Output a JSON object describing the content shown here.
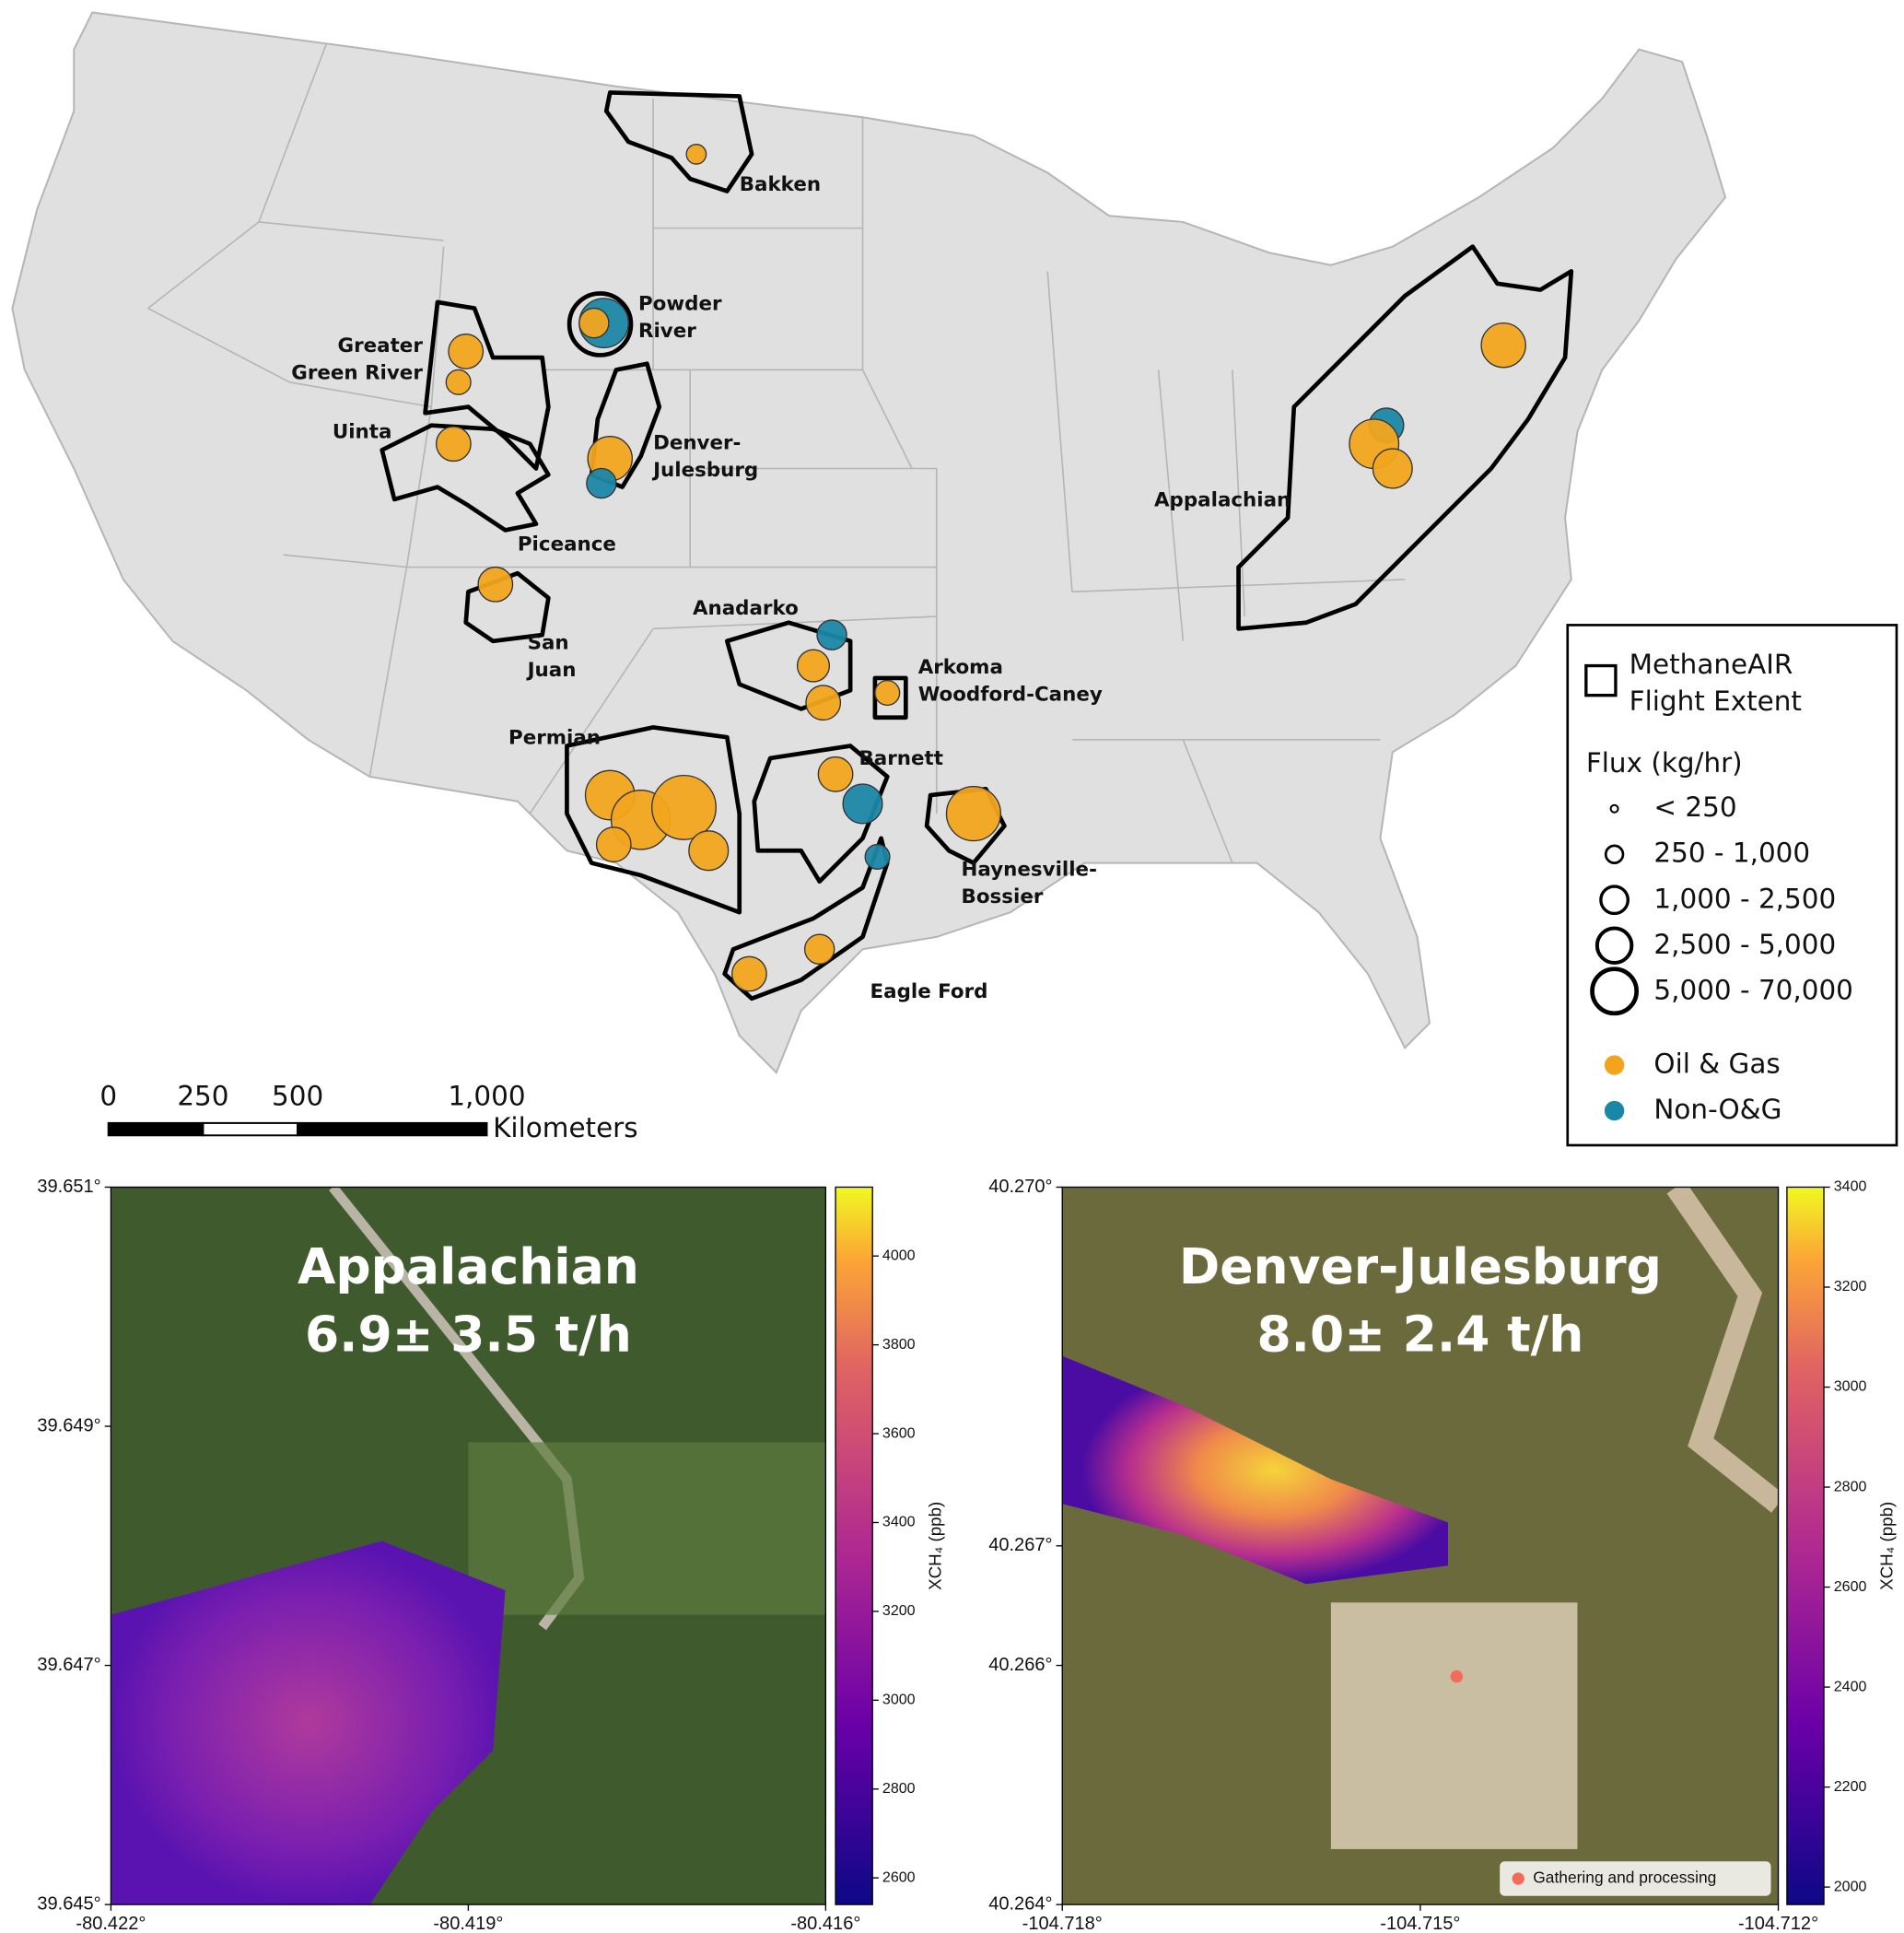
{
  "map": {
    "basins": [
      {
        "label": [
          "Bakken"
        ]
      },
      {
        "label": [
          "Powder",
          "River"
        ]
      },
      {
        "label": [
          "Greater",
          "Green River"
        ]
      },
      {
        "label": [
          "Uinta"
        ]
      },
      {
        "label": [
          "Denver-",
          "Julesburg"
        ]
      },
      {
        "label": [
          "Piceance"
        ]
      },
      {
        "label": [
          "San",
          "Juan"
        ]
      },
      {
        "label": [
          "Anadarko"
        ]
      },
      {
        "label": [
          "Arkoma",
          "Woodford-Caney"
        ]
      },
      {
        "label": [
          "Permian"
        ]
      },
      {
        "label": [
          "Barnett"
        ]
      },
      {
        "label": [
          "Haynesville-",
          "Bossier"
        ]
      },
      {
        "label": [
          "Eagle Ford"
        ]
      },
      {
        "label": [
          "Appalachian"
        ]
      }
    ],
    "legend": {
      "extent_label": [
        "MethaneAIR",
        "Flight Extent"
      ],
      "flux_title": "Flux (kg/hr)",
      "flux_classes": [
        "< 250",
        "250 - 1,000",
        "1,000 - 2,500",
        "2,500 - 5,000",
        "5,000 - 70,000"
      ],
      "categories": [
        {
          "label": "Oil & Gas",
          "color": "#f2a51c"
        },
        {
          "label": "Non-O&G",
          "color": "#1b87a6"
        }
      ]
    },
    "scale_bar": {
      "ticks": [
        0,
        250,
        500,
        {
          "value": 1000,
          "label": "1,000"
        }
      ],
      "unit": "Kilometers"
    }
  },
  "panels": [
    {
      "title": "Appalachian",
      "rate": "6.9± 3.5 t/h",
      "xlim": [
        -80.422,
        -80.416
      ],
      "xticks": [
        {
          "value": -80.422,
          "label": "-80.422°"
        },
        {
          "value": -80.419,
          "label": "-80.419°"
        },
        {
          "value": -80.416,
          "label": "-80.416°"
        }
      ],
      "ylim": [
        39.645,
        39.651
      ],
      "yticks": [
        {
          "value": 39.651,
          "label": "39.651°"
        },
        {
          "value": 39.649,
          "label": "39.649°"
        },
        {
          "value": 39.647,
          "label": "39.647°"
        },
        {
          "value": 39.645,
          "label": "39.645°"
        }
      ],
      "colorbar_label": "XCH₄ (ppb)",
      "clim": [
        2540,
        4155
      ],
      "cticks": [
        2600,
        2800,
        3000,
        3200,
        3400,
        3600,
        3800,
        4000
      ]
    },
    {
      "title": "Denver-Julesburg",
      "rate": "8.0± 2.4 t/h",
      "xlim": [
        -104.718,
        -104.712
      ],
      "xticks": [
        {
          "value": -104.718,
          "label": "-104.718°"
        },
        {
          "value": -104.715,
          "label": "-104.715°"
        },
        {
          "value": -104.712,
          "label": "-104.712°"
        }
      ],
      "ylim": [
        40.264,
        40.27
      ],
      "yticks": [
        {
          "value": 40.27,
          "label": "40.270°"
        },
        {
          "value": 40.267,
          "label": "40.267°"
        },
        {
          "value": 40.266,
          "label": "40.266°"
        },
        {
          "value": 40.264,
          "label": "40.264°"
        }
      ],
      "colorbar_label": "XCH₄ (ppb)",
      "clim": [
        1965,
        3400
      ],
      "cticks": [
        2000,
        2200,
        2400,
        2600,
        2800,
        3000,
        3200,
        3400
      ],
      "legend": {
        "label": "Gathering and processing",
        "color": "#f26b5b"
      }
    }
  ]
}
